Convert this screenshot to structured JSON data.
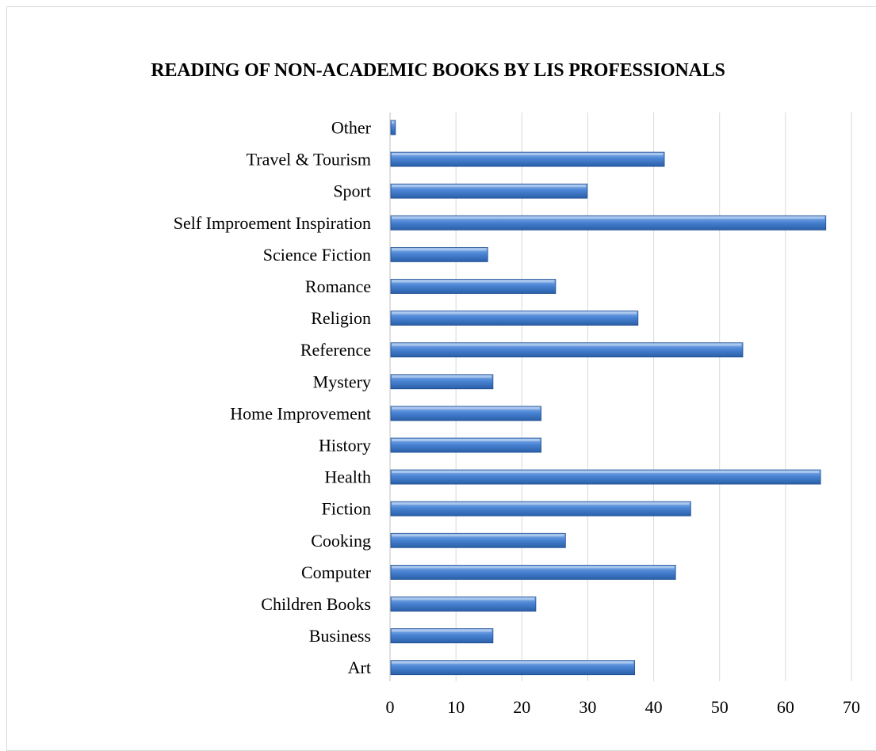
{
  "chart_data": {
    "type": "bar",
    "orientation": "horizontal",
    "title": "READING OF NON-ACADEMIC BOOKS BY LIS PROFESSIONALS",
    "xlabel": "",
    "ylabel": "",
    "xlim": [
      0,
      70
    ],
    "x_ticks": [
      0,
      10,
      20,
      30,
      40,
      50,
      60,
      70
    ],
    "grid": "vertical",
    "legend": "none",
    "categories": [
      "Other",
      "Travel & Tourism",
      "Sport",
      "Self Improement Inspiration",
      "Science Fiction",
      "Romance",
      "Religion",
      "Reference",
      "Mystery",
      "Home Improvement",
      "History",
      "Health",
      "Fiction",
      "Cooking",
      "Computer",
      "Children Books",
      "Business",
      "Art"
    ],
    "values": [
      0.7,
      41.5,
      29.8,
      66,
      14.7,
      25,
      37.5,
      53.4,
      15.5,
      22.8,
      22.8,
      65.2,
      45.5,
      26.5,
      43.2,
      22,
      15.5,
      37
    ]
  },
  "colors": {
    "bar_top": "#8fb7ec",
    "bar_mid": "#4a84d4",
    "bar_bottom": "#2a5fa8",
    "bar_edge": "#1f4e8f",
    "grid": "#d9d9d9",
    "axis": "#bfbfbf"
  }
}
